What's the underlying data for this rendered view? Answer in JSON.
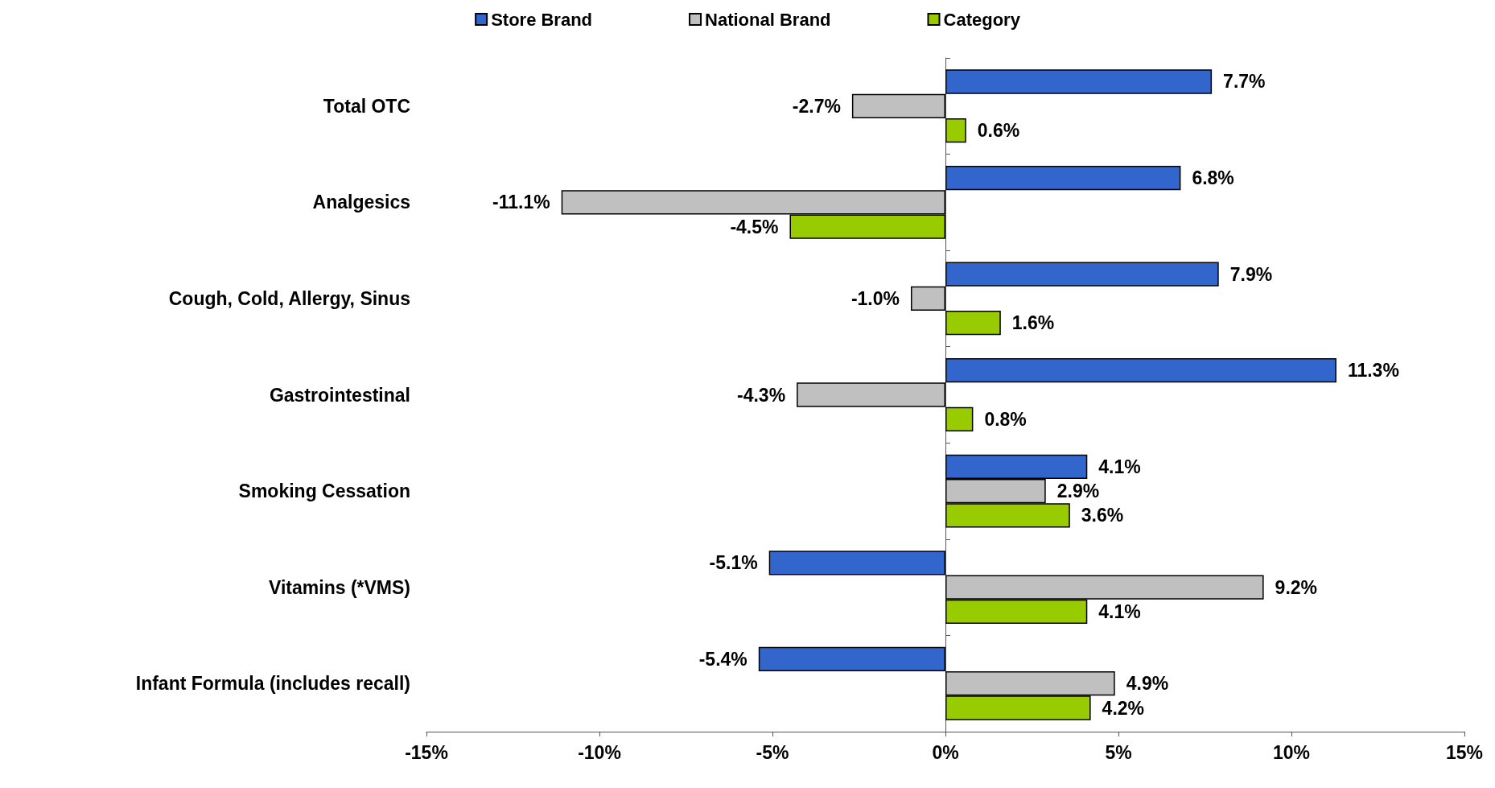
{
  "chart_data": {
    "type": "bar",
    "orientation": "horizontal",
    "legend": "top",
    "categories": [
      "Total OTC",
      "Analgesics",
      "Cough, Cold, Allergy, Sinus",
      "Gastrointestinal",
      "Smoking Cessation",
      "Vitamins (*VMS)",
      "Infant Formula (includes recall)"
    ],
    "xlim": [
      -15,
      15
    ],
    "xticks": [
      {
        "value": -15,
        "label": "-15%"
      },
      {
        "value": -10,
        "label": "-10%"
      },
      {
        "value": -5,
        "label": "-5%"
      },
      {
        "value": 0,
        "label": "0%"
      },
      {
        "value": 5,
        "label": "5%"
      },
      {
        "value": 10,
        "label": "10%"
      },
      {
        "value": 15,
        "label": "15%"
      }
    ],
    "series": [
      {
        "name": "Store Brand",
        "color": "#3366cc",
        "values": [
          7.7,
          6.8,
          7.9,
          11.3,
          4.1,
          -5.1,
          -5.4
        ],
        "value_labels": [
          "7.7%",
          "6.8%",
          "7.9%",
          "11.3%",
          "4.1%",
          "-5.1%",
          "-5.4%"
        ]
      },
      {
        "name": "National Brand",
        "color": "#c0c0c0",
        "values": [
          -2.7,
          -11.1,
          -1.0,
          -4.3,
          2.9,
          9.2,
          4.9
        ],
        "value_labels": [
          "-2.7%",
          "-11.1%",
          "-1.0%",
          "-4.3%",
          "2.9%",
          "9.2%",
          "4.9%"
        ]
      },
      {
        "name": "Category",
        "color": "#99cc00",
        "values": [
          0.6,
          -4.5,
          1.6,
          0.8,
          3.6,
          4.1,
          4.2
        ],
        "value_labels": [
          "0.6%",
          "-4.5%",
          "1.6%",
          "0.8%",
          "3.6%",
          "4.1%",
          "4.2%"
        ]
      }
    ]
  }
}
